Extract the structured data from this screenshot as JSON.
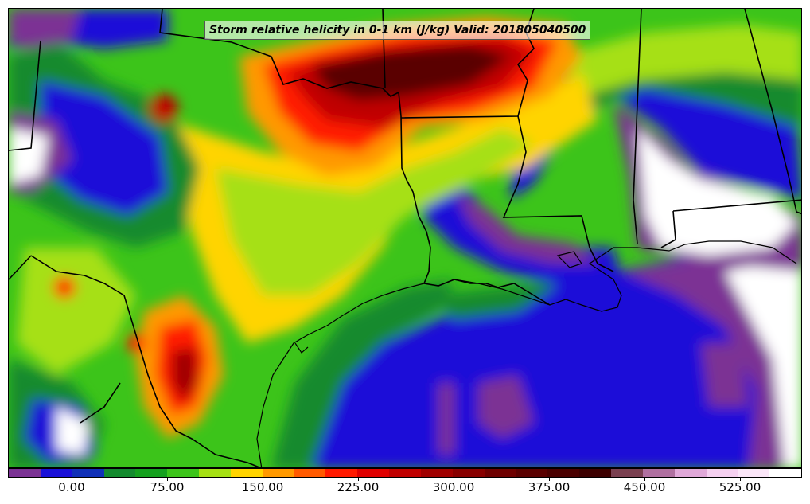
{
  "title": "Storm relative helicity in 0-1 km (J/kg) Valid: 201805040500",
  "colorbar": {
    "colors": [
      "#7b3294",
      "#1a10d8",
      "#1030b8",
      "#138a2e",
      "#14a01e",
      "#3cc41a",
      "#a6e014",
      "#ffd400",
      "#ff9900",
      "#ff5a00",
      "#ff1a00",
      "#e00000",
      "#c00000",
      "#a00000",
      "#880000",
      "#6e0000",
      "#5a0000",
      "#4a0000",
      "#3c0000",
      "#7a4050",
      "#b070a0",
      "#e0a8d8",
      "#f5d0f0",
      "#fbe6f8",
      "#ffffff"
    ],
    "tick_labels": [
      "0.00",
      "75.00",
      "150.00",
      "225.00",
      "300.00",
      "375.00",
      "450.00",
      "525.00"
    ]
  },
  "palette": {
    "purple": "#7b3294",
    "blue": "#1a10d8",
    "green": "#138a2e",
    "light_green": "#3cc41a",
    "yellow_green": "#a6e014",
    "yellow": "#ffd400",
    "orange": "#ff9900",
    "red": "#ff1a00",
    "dark_red": "#9a0000",
    "maroon": "#5a0000",
    "white": "#ffffff",
    "boundary": "#000000"
  }
}
